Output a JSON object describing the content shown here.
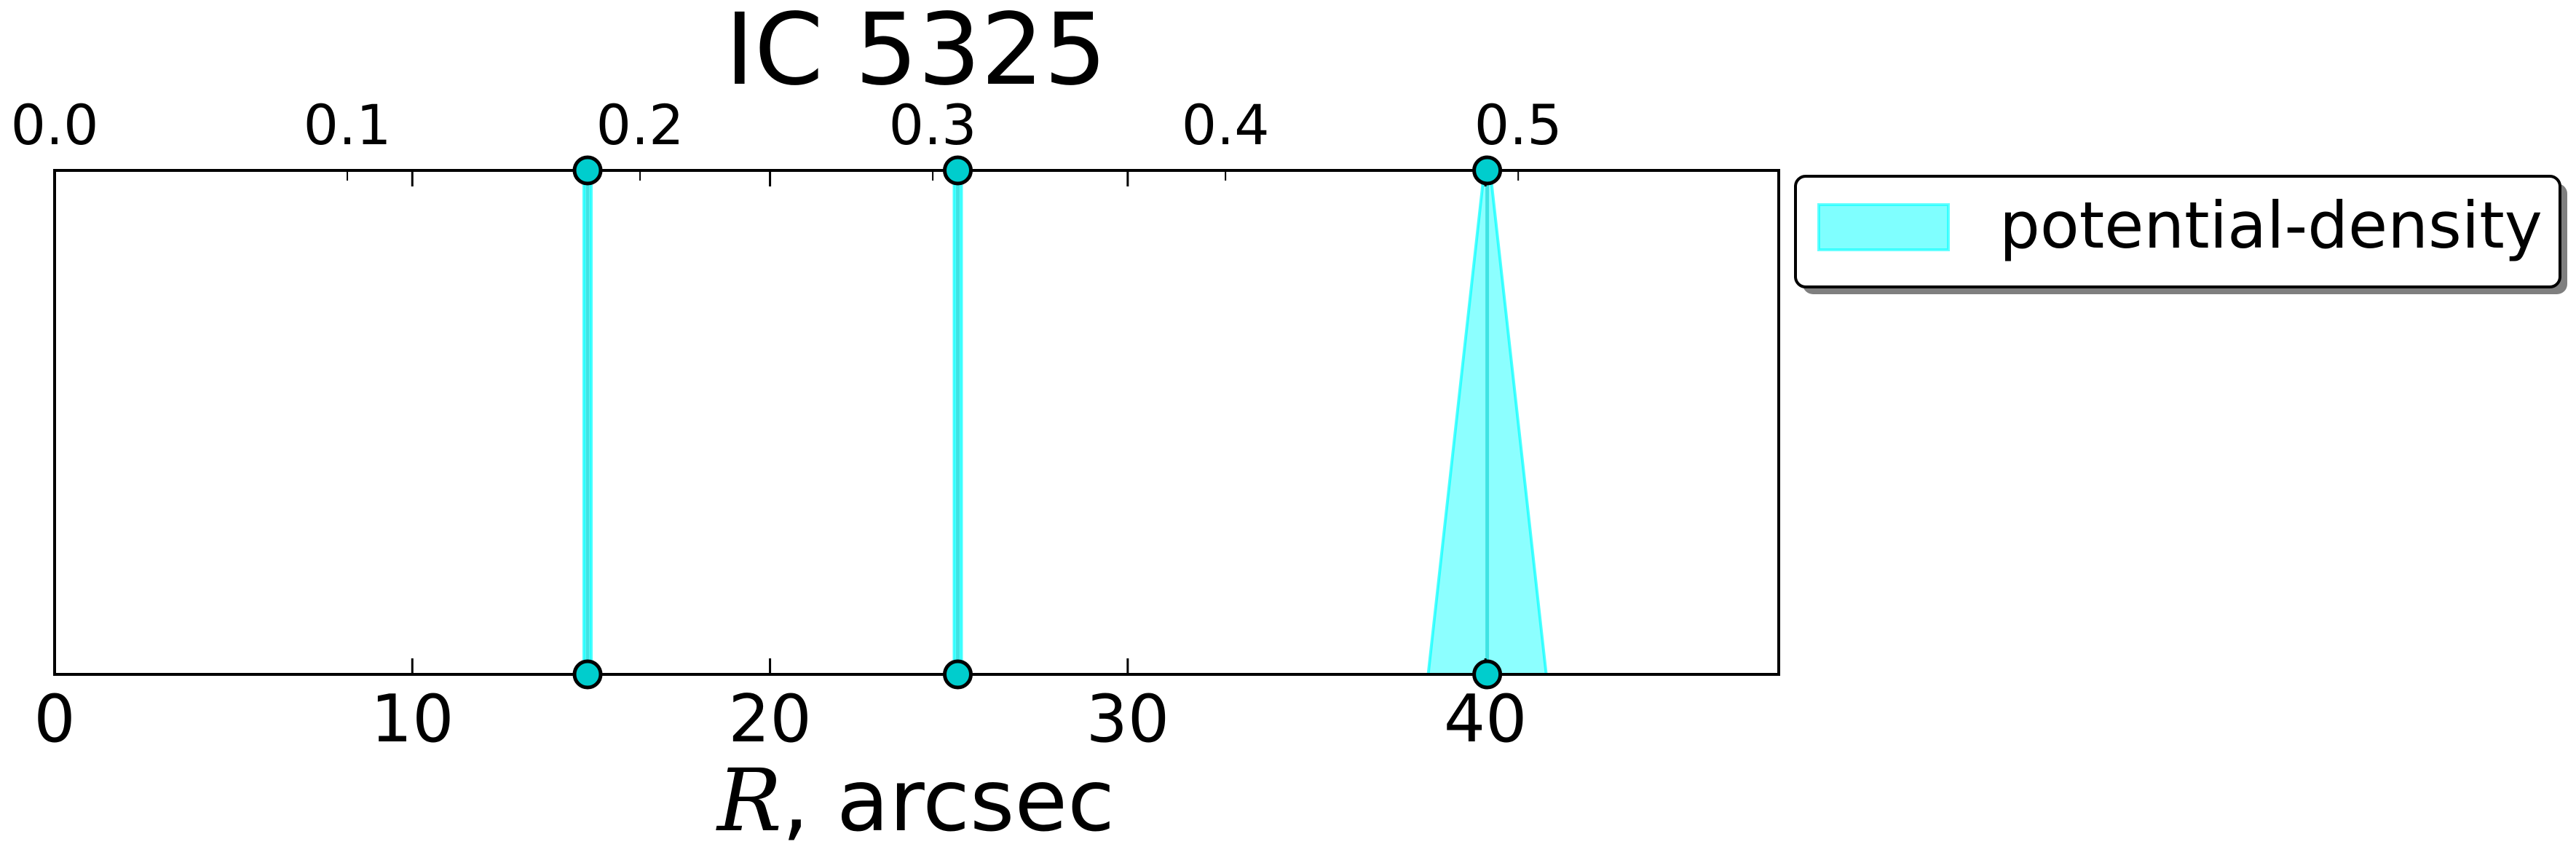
{
  "chart_data": {
    "type": "area",
    "title": "IC 5325",
    "xlabel_italic": "R",
    "xlabel_rest": ", arcsec",
    "xlim": [
      0,
      48.2
    ],
    "xticks": [
      0,
      10,
      20,
      30,
      40
    ],
    "xtick_labels": [
      "0",
      "10",
      "20",
      "30",
      "40"
    ],
    "top_xlim": [
      0,
      0.589
    ],
    "top_xticks": [
      0.0,
      0.1,
      0.2,
      0.3,
      0.4,
      0.5
    ],
    "top_xtick_labels": [
      "0.0",
      "0.1",
      "0.2",
      "0.3",
      "0.4",
      "0.5"
    ],
    "ylim": [
      0,
      1
    ],
    "grid": false,
    "legend_position": "outside-right-top",
    "series": [
      {
        "name": "potential-density",
        "color": "#00ffff",
        "edge_color": "#00cccc",
        "regions": [
          {
            "center": 14.9,
            "low": 14.85,
            "high": 14.95
          },
          {
            "center": 25.25,
            "low": 25.2,
            "high": 25.3
          },
          {
            "center": 40.05,
            "low": 38.4,
            "high": 41.7
          }
        ]
      }
    ]
  }
}
